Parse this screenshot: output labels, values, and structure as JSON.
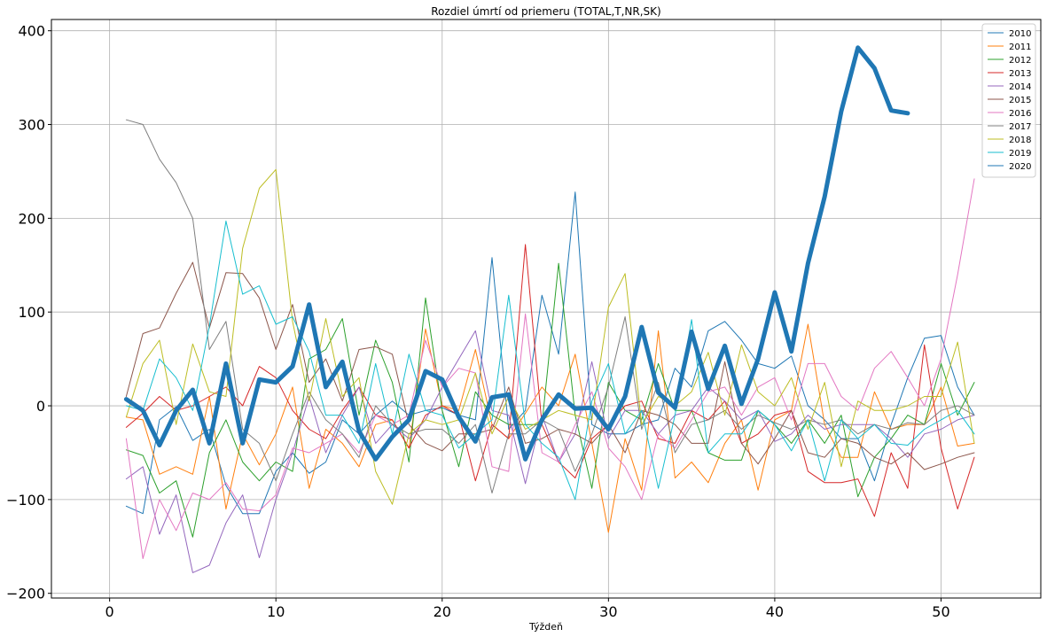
{
  "chart_data": {
    "type": "line",
    "title": "Rozdiel úmrtí od priemeru (TOTAL,T,NR,SK)",
    "xlabel": "Týždeň",
    "ylabel": "",
    "xlim": [
      -3.5,
      56
    ],
    "ylim": [
      -205,
      412
    ],
    "xticks": [
      0,
      10,
      20,
      30,
      40,
      50
    ],
    "yticks": [
      -200,
      -100,
      0,
      100,
      200,
      300,
      400
    ],
    "grid": true,
    "legend_position": "top-right",
    "series": [
      {
        "name": "2010",
        "color": "#1f77b4",
        "width": 1,
        "x_start": 1,
        "values": [
          -107,
          -115,
          -15,
          -1,
          -37,
          -25,
          -85,
          -115,
          -115,
          -70,
          -50,
          -72,
          -60,
          -15,
          -30,
          -10,
          5,
          -10,
          -5,
          -2,
          -10,
          -15,
          158,
          -25,
          -5,
          118,
          55,
          228,
          -20,
          -30,
          -30,
          -20,
          -15,
          40,
          20,
          80,
          90,
          70,
          45,
          40,
          53,
          0,
          -15,
          -35,
          -35,
          -80,
          -20,
          30,
          72,
          75,
          20,
          -10
        ]
      },
      {
        "name": "2011",
        "color": "#ff7f0e",
        "width": 1,
        "x_start": 1,
        "values": [
          -12,
          -15,
          -73,
          -65,
          -73,
          10,
          -110,
          -30,
          -63,
          -30,
          20,
          -88,
          -25,
          -40,
          -65,
          -20,
          -15,
          -45,
          82,
          0,
          -5,
          60,
          -20,
          -35,
          -8,
          20,
          0,
          55,
          -40,
          -135,
          -35,
          -90,
          80,
          -77,
          -60,
          -82,
          -40,
          -15,
          -90,
          -15,
          -5,
          87,
          -20,
          -55,
          -55,
          15,
          -25,
          -20,
          -20,
          20,
          -43,
          -40
        ]
      },
      {
        "name": "2012",
        "color": "#2ca02c",
        "width": 1,
        "x_start": 1,
        "values": [
          -47,
          -53,
          -93,
          -80,
          -140,
          -50,
          -15,
          -60,
          -80,
          -60,
          -70,
          50,
          60,
          93,
          -10,
          70,
          25,
          -60,
          115,
          -5,
          -65,
          15,
          -10,
          -20,
          -20,
          -20,
          152,
          -10,
          -88,
          25,
          -5,
          -15,
          45,
          -5,
          -5,
          -50,
          -58,
          -58,
          -5,
          -20,
          -40,
          -15,
          -40,
          -10,
          -97,
          -55,
          -35,
          -10,
          -20,
          45,
          -10,
          25
        ]
      },
      {
        "name": "2013",
        "color": "#d62728",
        "width": 1,
        "x_start": 1,
        "values": [
          -23,
          -8,
          10,
          -5,
          0,
          10,
          20,
          0,
          42,
          30,
          -5,
          -25,
          -35,
          -5,
          20,
          -10,
          -15,
          -45,
          -10,
          0,
          -10,
          -80,
          -20,
          -35,
          172,
          -20,
          -60,
          -77,
          -35,
          -20,
          0,
          5,
          -35,
          -40,
          -5,
          -15,
          5,
          -40,
          -30,
          -10,
          -5,
          -70,
          -82,
          -82,
          -78,
          -118,
          -50,
          -88,
          65,
          -45,
          -110,
          -55
        ]
      },
      {
        "name": "2014",
        "color": "#9467bd",
        "width": 1,
        "x_start": 1,
        "values": [
          -78,
          -65,
          -137,
          -95,
          -178,
          -170,
          -125,
          -95,
          -162,
          -100,
          -50,
          10,
          -50,
          -10,
          20,
          -40,
          -20,
          -35,
          -15,
          20,
          50,
          80,
          -5,
          -10,
          -83,
          -10,
          -60,
          -30,
          47,
          -35,
          -5,
          -5,
          -30,
          -10,
          -5,
          20,
          5,
          -15,
          -5,
          -38,
          -30,
          -10,
          -25,
          -20,
          -20,
          -20,
          -35,
          -55,
          -30,
          -25,
          -15,
          -10
        ]
      },
      {
        "name": "2015",
        "color": "#8c564b",
        "width": 1,
        "x_start": 1,
        "values": [
          10,
          77,
          83,
          120,
          153,
          83,
          142,
          141,
          115,
          60,
          108,
          25,
          50,
          5,
          60,
          63,
          55,
          -20,
          -40,
          -48,
          -30,
          -30,
          -25,
          20,
          -40,
          -35,
          -25,
          -30,
          -40,
          -20,
          -50,
          -5,
          -10,
          -20,
          -40,
          -40,
          47,
          -40,
          -62,
          -35,
          -5,
          -50,
          -55,
          -35,
          -40,
          -55,
          -62,
          -50,
          -68,
          -62,
          -55,
          -50
        ]
      },
      {
        "name": "2016",
        "color": "#e377c2",
        "width": 1,
        "x_start": 1,
        "values": [
          -35,
          -163,
          -100,
          -133,
          -93,
          -100,
          -82,
          -110,
          -112,
          -95,
          -45,
          -50,
          -40,
          -30,
          -50,
          -10,
          -20,
          -10,
          70,
          20,
          40,
          35,
          -65,
          -70,
          98,
          -50,
          -60,
          -20,
          15,
          -45,
          -65,
          -100,
          -30,
          -45,
          -15,
          15,
          20,
          -10,
          20,
          30,
          -15,
          45,
          45,
          10,
          -5,
          40,
          58,
          30,
          0,
          50,
          140,
          242
        ]
      },
      {
        "name": "2017",
        "color": "#7f7f7f",
        "width": 1,
        "x_start": 1,
        "values": [
          305,
          300,
          263,
          238,
          200,
          60,
          90,
          -25,
          -40,
          -80,
          -30,
          15,
          -15,
          -30,
          -55,
          0,
          -20,
          -30,
          -25,
          -25,
          -40,
          -20,
          -93,
          -30,
          -30,
          -15,
          -25,
          -70,
          -30,
          20,
          95,
          -25,
          25,
          -50,
          -20,
          -15,
          -5,
          -25,
          -10,
          -18,
          -25,
          -15,
          -20,
          -15,
          -30,
          -20,
          -25,
          -18,
          -20,
          -5,
          0,
          -10
        ]
      },
      {
        "name": "2018",
        "color": "#bcbd22",
        "width": 1,
        "x_start": 1,
        "values": [
          -12,
          45,
          70,
          -20,
          66,
          15,
          10,
          168,
          232,
          252,
          90,
          5,
          93,
          10,
          30,
          -70,
          -105,
          -30,
          -15,
          -20,
          -15,
          35,
          -30,
          10,
          -25,
          -15,
          -5,
          -10,
          -15,
          105,
          141,
          -20,
          10,
          0,
          15,
          57,
          -10,
          65,
          15,
          0,
          30,
          -25,
          25,
          -65,
          5,
          -5,
          -5,
          0,
          10,
          10,
          68,
          -40
        ]
      },
      {
        "name": "2019",
        "color": "#17becf",
        "width": 1,
        "x_start": 1,
        "values": [
          0,
          -5,
          50,
          30,
          -5,
          85,
          197,
          119,
          128,
          87,
          95,
          58,
          -10,
          -10,
          -40,
          45,
          -30,
          55,
          -5,
          -10,
          -45,
          -30,
          -15,
          118,
          -20,
          -40,
          -55,
          -100,
          5,
          45,
          -30,
          -5,
          -88,
          -10,
          92,
          -50,
          -30,
          -30,
          -5,
          -20,
          -48,
          -15,
          -80,
          -15,
          -35,
          -20,
          -40,
          -42,
          -25,
          -15,
          -5,
          -30
        ]
      },
      {
        "name": "2020",
        "color": "#1f77b4",
        "width": 5,
        "x_start": 1,
        "values": [
          7,
          -5,
          -42,
          -5,
          17,
          -40,
          45,
          -40,
          28,
          25,
          42,
          108,
          20,
          47,
          -27,
          -57,
          -33,
          -15,
          37,
          28,
          -12,
          -38,
          9,
          12,
          -57,
          -15,
          12,
          -3,
          -2,
          -25,
          10,
          84,
          14,
          -2,
          79,
          18,
          64,
          2,
          50,
          121,
          58,
          152,
          223,
          314,
          382,
          360,
          315,
          312
        ]
      }
    ]
  }
}
